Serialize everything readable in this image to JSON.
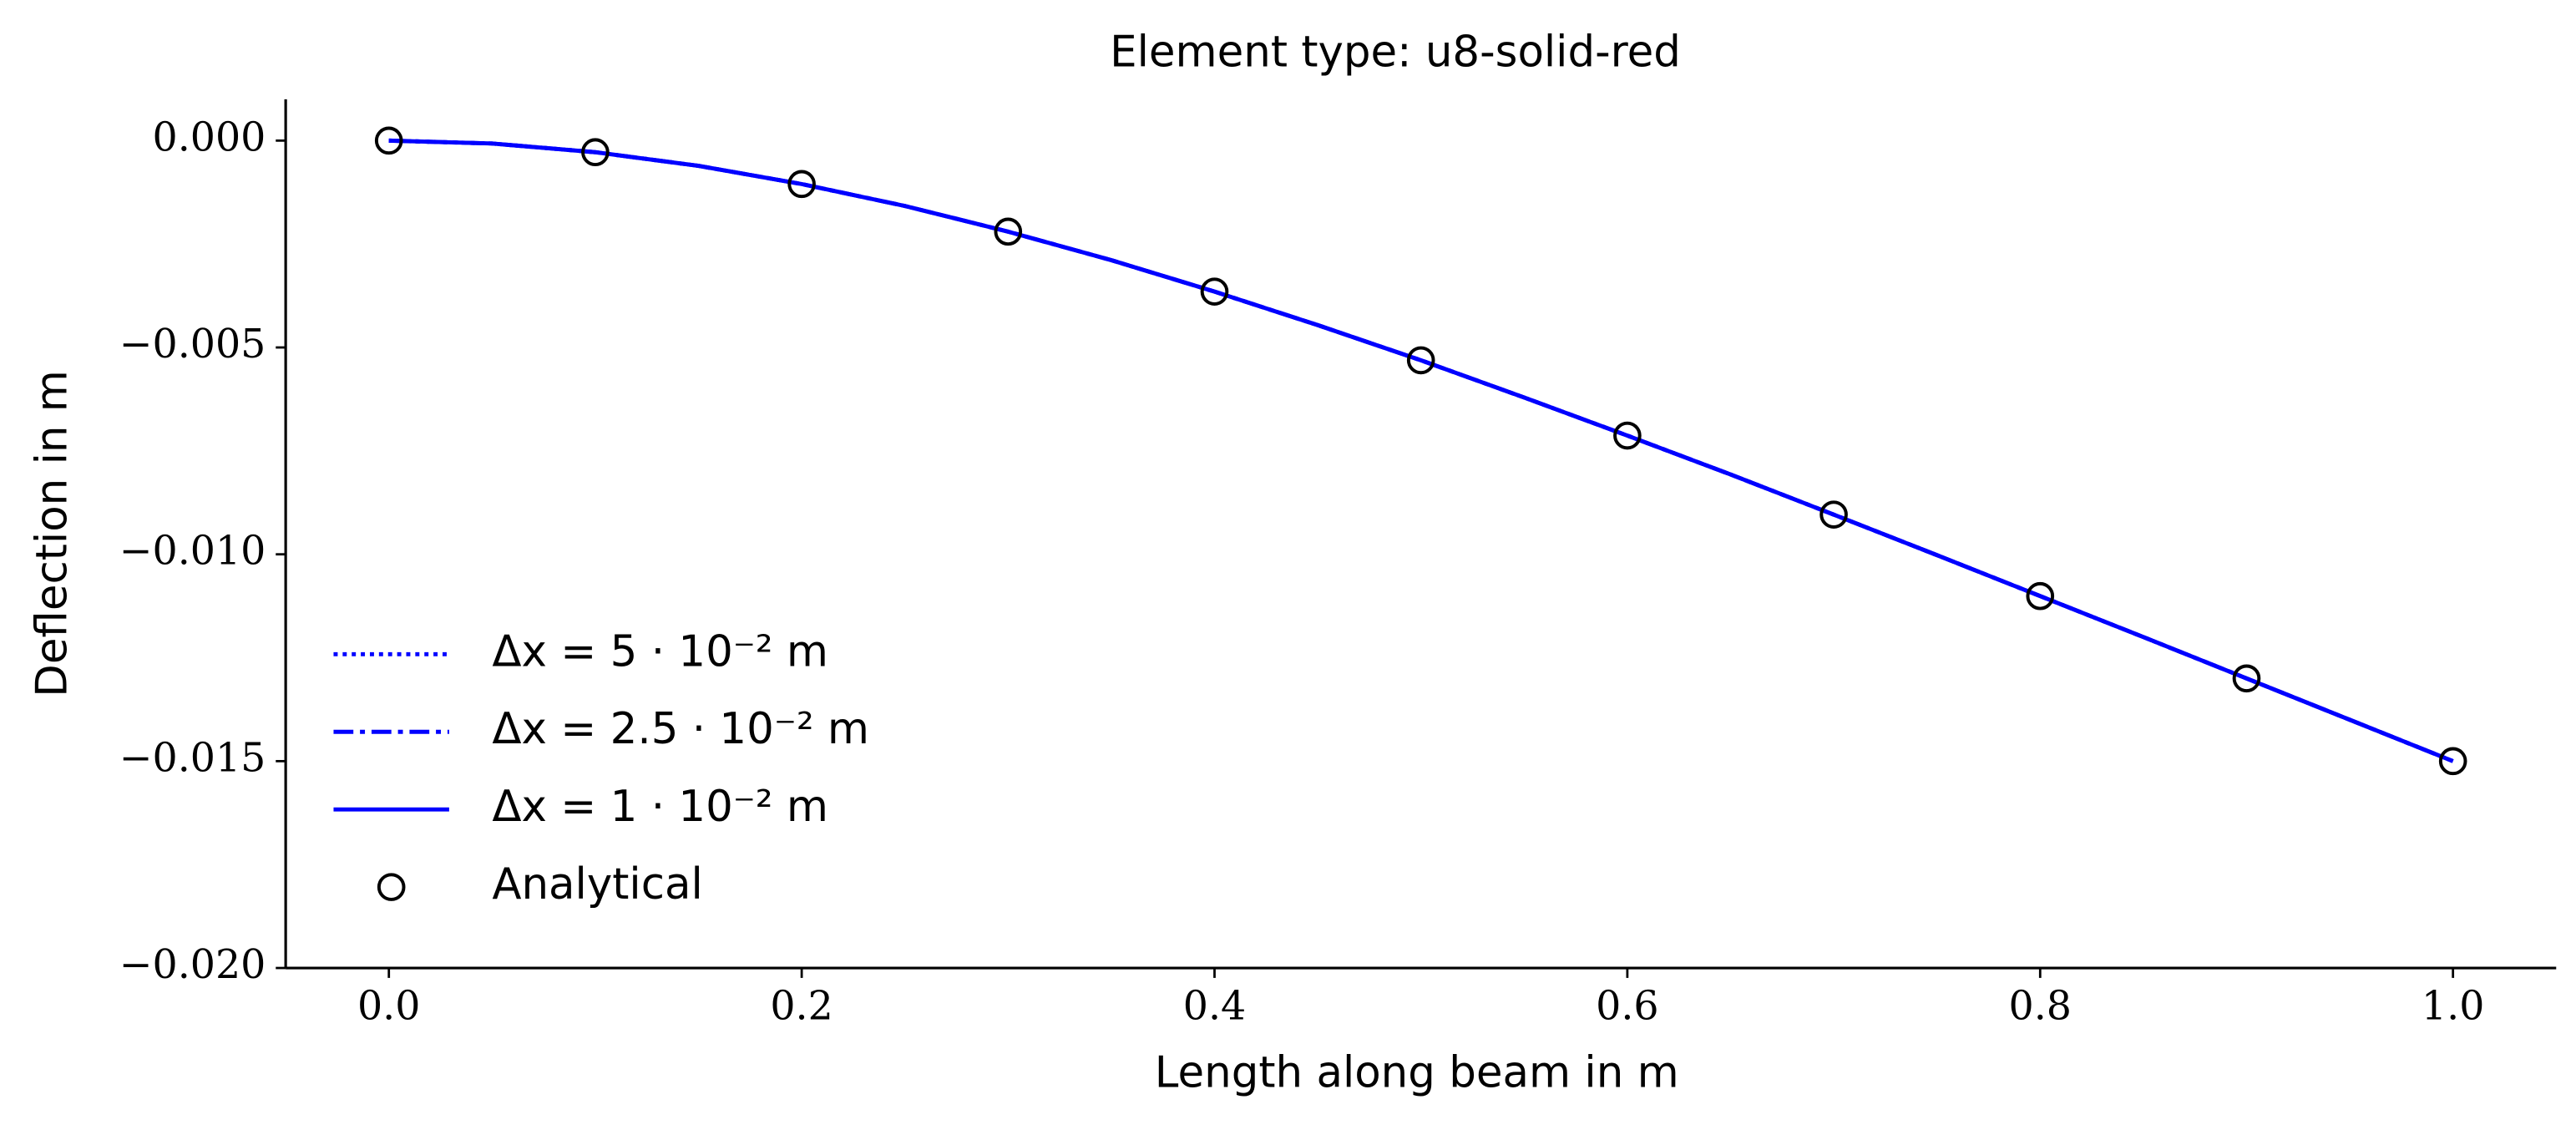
{
  "chart_data": {
    "type": "line",
    "title": "Element type: u8-solid-red",
    "x_label": "Length along beam in m",
    "y_label": "Deflection in m",
    "xlim": [
      -0.05,
      1.05
    ],
    "ylim": [
      -0.02,
      0.001
    ],
    "xticks": [
      {
        "value": 0,
        "label": "0.0"
      },
      {
        "value": 0.2,
        "label": "0.2"
      },
      {
        "value": 0.4,
        "label": "0.4"
      },
      {
        "value": 0.6,
        "label": "0.6"
      },
      {
        "value": 0.8,
        "label": "0.8"
      },
      {
        "value": 1,
        "label": "1.0"
      }
    ],
    "yticks": [
      {
        "value": 0,
        "label": "0.000"
      },
      {
        "value": -0.005,
        "label": "−0.005"
      },
      {
        "value": -0.01,
        "label": "−0.010"
      },
      {
        "value": -0.015,
        "label": "−0.015"
      },
      {
        "value": -0.02,
        "label": "−0.020"
      }
    ],
    "legend": "lower left",
    "series": [
      {
        "name": "Δx = 5 · 10⁻² m",
        "color": "#0000ff",
        "linestyle": "dotted",
        "x": [
          0,
          0.05,
          0.1,
          0.15,
          0.2,
          0.25,
          0.3,
          0.35,
          0.4,
          0.45,
          0.5,
          0.55,
          0.6,
          0.65,
          0.7,
          0.75,
          0.8,
          0.85,
          0.9,
          0.95,
          1
        ],
        "values": [
          0,
          -7e-05,
          -0.00028,
          -0.00061,
          -0.00105,
          -0.00158,
          -0.0022,
          -0.00289,
          -0.00365,
          -0.00446,
          -0.00531,
          -0.00621,
          -0.00713,
          -0.00807,
          -0.00904,
          -0.01002,
          -0.01101,
          -0.012,
          -0.013,
          -0.014,
          -0.015
        ]
      },
      {
        "name": "Δx = 2.5 · 10⁻² m",
        "color": "#0000ff",
        "linestyle": "dashdot",
        "x": [
          0,
          0.05,
          0.1,
          0.15,
          0.2,
          0.25,
          0.3,
          0.35,
          0.4,
          0.45,
          0.5,
          0.55,
          0.6,
          0.65,
          0.7,
          0.75,
          0.8,
          0.85,
          0.9,
          0.95,
          1
        ],
        "values": [
          0,
          -7e-05,
          -0.00028,
          -0.00061,
          -0.00105,
          -0.00158,
          -0.0022,
          -0.00289,
          -0.00365,
          -0.00446,
          -0.00531,
          -0.00621,
          -0.00713,
          -0.00807,
          -0.00904,
          -0.01002,
          -0.01101,
          -0.012,
          -0.013,
          -0.014,
          -0.015
        ]
      },
      {
        "name": "Δx = 1 · 10⁻² m",
        "color": "#0000ff",
        "linestyle": "solid",
        "x": [
          0,
          0.05,
          0.1,
          0.15,
          0.2,
          0.25,
          0.3,
          0.35,
          0.4,
          0.45,
          0.5,
          0.55,
          0.6,
          0.65,
          0.7,
          0.75,
          0.8,
          0.85,
          0.9,
          0.95,
          1
        ],
        "values": [
          0,
          -7e-05,
          -0.00028,
          -0.00061,
          -0.00105,
          -0.00158,
          -0.0022,
          -0.00289,
          -0.00365,
          -0.00446,
          -0.00531,
          -0.00621,
          -0.00713,
          -0.00807,
          -0.00904,
          -0.01002,
          -0.01101,
          -0.012,
          -0.013,
          -0.014,
          -0.015
        ]
      },
      {
        "name": "Analytical",
        "color": "#000000",
        "linestyle": "none",
        "marker": "circle",
        "x": [
          0,
          0.1,
          0.2,
          0.3,
          0.4,
          0.5,
          0.6,
          0.7,
          0.8,
          0.9,
          1
        ],
        "values": [
          0,
          -0.00028,
          -0.00105,
          -0.0022,
          -0.00365,
          -0.00531,
          -0.00713,
          -0.00904,
          -0.01101,
          -0.013,
          -0.015
        ]
      }
    ]
  }
}
